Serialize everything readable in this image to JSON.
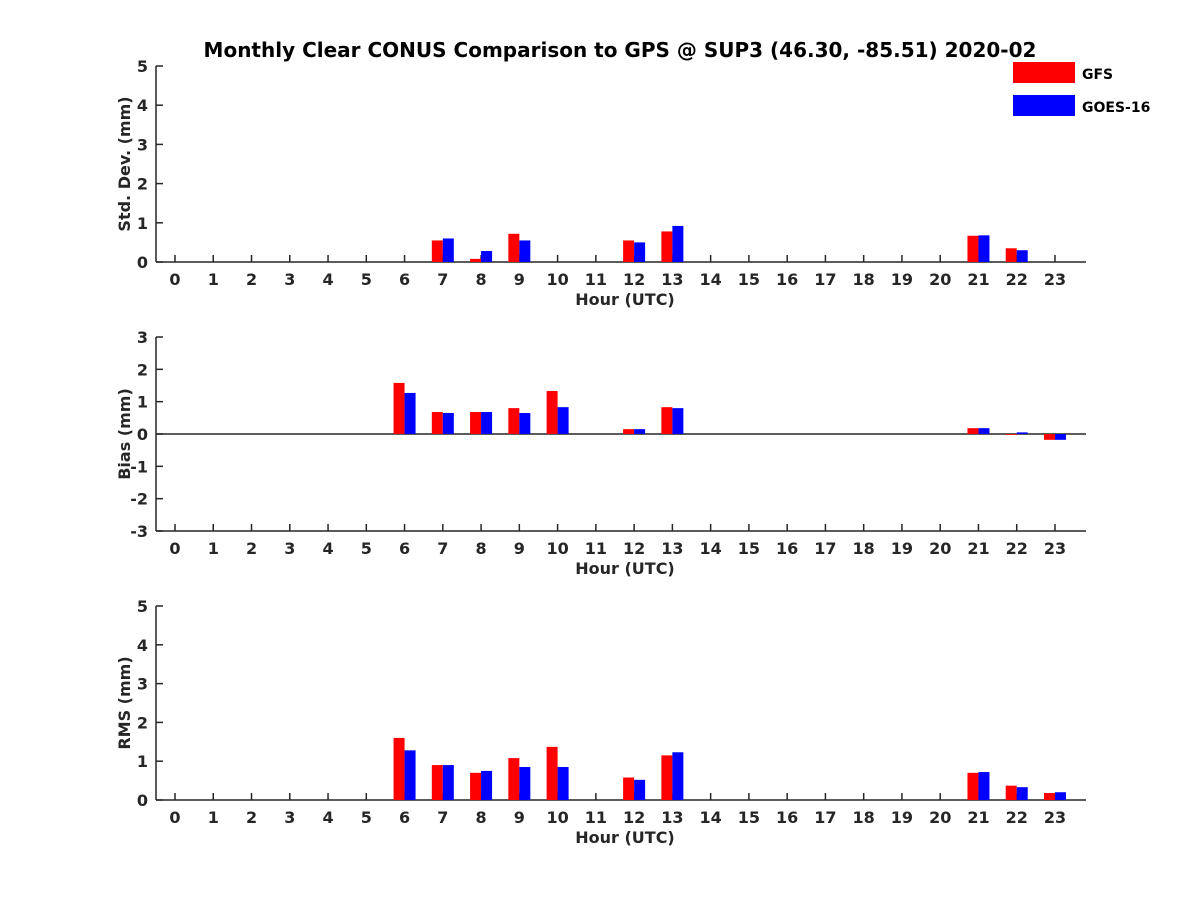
{
  "colors": {
    "GFS": "#ff0000",
    "GOES-16": "#0000ff",
    "axis": "#262626"
  },
  "chart_data": [
    {
      "type": "bar",
      "title": "Monthly Clear CONUS Comparison to GPS @ SUP3 (46.30, -85.51) 2020-02",
      "xlabel": "Hour (UTC)",
      "ylabel": "Std. Dev. (mm)",
      "ylim": [
        0,
        5
      ],
      "yticks": [
        "0",
        "1",
        "2",
        "3",
        "4",
        "5"
      ],
      "categories": [
        "0",
        "1",
        "2",
        "3",
        "4",
        "5",
        "6",
        "7",
        "8",
        "9",
        "10",
        "11",
        "12",
        "13",
        "14",
        "15",
        "16",
        "17",
        "18",
        "19",
        "20",
        "21",
        "22",
        "23"
      ],
      "legend": {
        "placement": "top-right",
        "entries": [
          "GFS",
          "GOES-16"
        ]
      },
      "series": [
        {
          "name": "GFS",
          "values": [
            null,
            null,
            null,
            null,
            null,
            null,
            null,
            0.55,
            0.08,
            0.72,
            null,
            null,
            0.55,
            0.78,
            null,
            null,
            null,
            null,
            null,
            null,
            null,
            0.67,
            0.35,
            null
          ]
        },
        {
          "name": "GOES-16",
          "values": [
            null,
            null,
            null,
            null,
            null,
            null,
            null,
            0.6,
            0.28,
            0.55,
            null,
            null,
            0.5,
            0.92,
            null,
            null,
            null,
            null,
            null,
            null,
            null,
            0.68,
            0.3,
            null
          ]
        }
      ]
    },
    {
      "type": "bar",
      "xlabel": "Hour (UTC)",
      "ylabel": "Bias (mm)",
      "ylim": [
        -3,
        3
      ],
      "yticks": [
        "-3",
        "-2",
        "-1",
        "0",
        "1",
        "2",
        "3"
      ],
      "zero_line": true,
      "categories": [
        "0",
        "1",
        "2",
        "3",
        "4",
        "5",
        "6",
        "7",
        "8",
        "9",
        "10",
        "11",
        "12",
        "13",
        "14",
        "15",
        "16",
        "17",
        "18",
        "19",
        "20",
        "21",
        "22",
        "23"
      ],
      "series": [
        {
          "name": "GFS",
          "values": [
            null,
            null,
            null,
            null,
            null,
            null,
            1.58,
            0.68,
            0.68,
            0.8,
            1.33,
            null,
            0.15,
            0.83,
            null,
            null,
            null,
            null,
            null,
            null,
            null,
            0.18,
            0.0,
            -0.18
          ]
        },
        {
          "name": "GOES-16",
          "values": [
            null,
            null,
            null,
            null,
            null,
            null,
            1.27,
            0.65,
            0.68,
            0.65,
            0.83,
            null,
            0.15,
            0.8,
            null,
            null,
            null,
            null,
            null,
            null,
            null,
            0.18,
            0.05,
            -0.18
          ]
        }
      ]
    },
    {
      "type": "bar",
      "xlabel": "Hour (UTC)",
      "ylabel": "RMS (mm)",
      "ylim": [
        0,
        5
      ],
      "yticks": [
        "0",
        "1",
        "2",
        "3",
        "4",
        "5"
      ],
      "categories": [
        "0",
        "1",
        "2",
        "3",
        "4",
        "5",
        "6",
        "7",
        "8",
        "9",
        "10",
        "11",
        "12",
        "13",
        "14",
        "15",
        "16",
        "17",
        "18",
        "19",
        "20",
        "21",
        "22",
        "23"
      ],
      "series": [
        {
          "name": "GFS",
          "values": [
            null,
            null,
            null,
            null,
            null,
            null,
            1.6,
            0.9,
            0.7,
            1.08,
            1.37,
            null,
            0.58,
            1.15,
            null,
            null,
            null,
            null,
            null,
            null,
            null,
            0.7,
            0.37,
            0.18
          ]
        },
        {
          "name": "GOES-16",
          "values": [
            null,
            null,
            null,
            null,
            null,
            null,
            1.28,
            0.9,
            0.75,
            0.85,
            0.85,
            null,
            0.52,
            1.23,
            null,
            null,
            null,
            null,
            null,
            null,
            null,
            0.72,
            0.33,
            0.2
          ]
        }
      ]
    }
  ]
}
